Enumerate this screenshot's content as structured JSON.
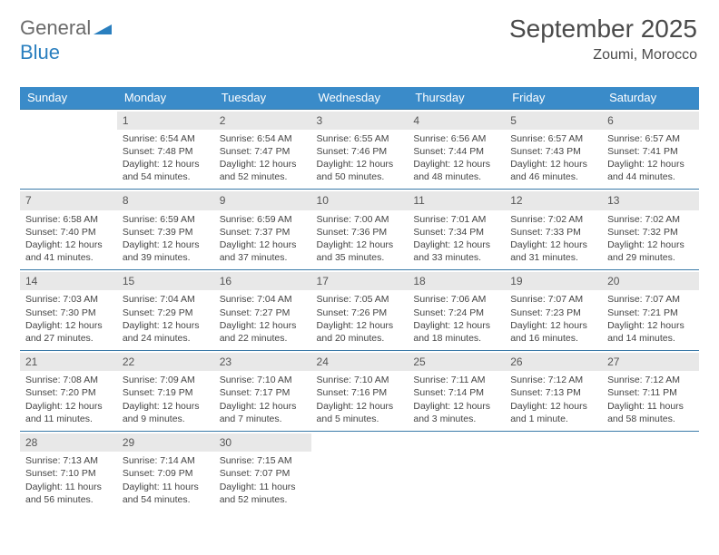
{
  "brand": {
    "part1": "General",
    "part2": "Blue"
  },
  "header": {
    "month_year": "September 2025",
    "location": "Zoumi, Morocco"
  },
  "style": {
    "header_bg": "#3a8bc9",
    "header_fg": "#ffffff",
    "rule_color": "#3a7aa8",
    "daynum_bg": "#e8e8e8",
    "brand_grey": "#6a6a6a",
    "brand_blue": "#2a7fbf"
  },
  "weekdays": [
    "Sunday",
    "Monday",
    "Tuesday",
    "Wednesday",
    "Thursday",
    "Friday",
    "Saturday"
  ],
  "weeks": [
    [
      null,
      {
        "n": "1",
        "sr": "6:54 AM",
        "ss": "7:48 PM",
        "dl": "12 hours and 54 minutes."
      },
      {
        "n": "2",
        "sr": "6:54 AM",
        "ss": "7:47 PM",
        "dl": "12 hours and 52 minutes."
      },
      {
        "n": "3",
        "sr": "6:55 AM",
        "ss": "7:46 PM",
        "dl": "12 hours and 50 minutes."
      },
      {
        "n": "4",
        "sr": "6:56 AM",
        "ss": "7:44 PM",
        "dl": "12 hours and 48 minutes."
      },
      {
        "n": "5",
        "sr": "6:57 AM",
        "ss": "7:43 PM",
        "dl": "12 hours and 46 minutes."
      },
      {
        "n": "6",
        "sr": "6:57 AM",
        "ss": "7:41 PM",
        "dl": "12 hours and 44 minutes."
      }
    ],
    [
      {
        "n": "7",
        "sr": "6:58 AM",
        "ss": "7:40 PM",
        "dl": "12 hours and 41 minutes."
      },
      {
        "n": "8",
        "sr": "6:59 AM",
        "ss": "7:39 PM",
        "dl": "12 hours and 39 minutes."
      },
      {
        "n": "9",
        "sr": "6:59 AM",
        "ss": "7:37 PM",
        "dl": "12 hours and 37 minutes."
      },
      {
        "n": "10",
        "sr": "7:00 AM",
        "ss": "7:36 PM",
        "dl": "12 hours and 35 minutes."
      },
      {
        "n": "11",
        "sr": "7:01 AM",
        "ss": "7:34 PM",
        "dl": "12 hours and 33 minutes."
      },
      {
        "n": "12",
        "sr": "7:02 AM",
        "ss": "7:33 PM",
        "dl": "12 hours and 31 minutes."
      },
      {
        "n": "13",
        "sr": "7:02 AM",
        "ss": "7:32 PM",
        "dl": "12 hours and 29 minutes."
      }
    ],
    [
      {
        "n": "14",
        "sr": "7:03 AM",
        "ss": "7:30 PM",
        "dl": "12 hours and 27 minutes."
      },
      {
        "n": "15",
        "sr": "7:04 AM",
        "ss": "7:29 PM",
        "dl": "12 hours and 24 minutes."
      },
      {
        "n": "16",
        "sr": "7:04 AM",
        "ss": "7:27 PM",
        "dl": "12 hours and 22 minutes."
      },
      {
        "n": "17",
        "sr": "7:05 AM",
        "ss": "7:26 PM",
        "dl": "12 hours and 20 minutes."
      },
      {
        "n": "18",
        "sr": "7:06 AM",
        "ss": "7:24 PM",
        "dl": "12 hours and 18 minutes."
      },
      {
        "n": "19",
        "sr": "7:07 AM",
        "ss": "7:23 PM",
        "dl": "12 hours and 16 minutes."
      },
      {
        "n": "20",
        "sr": "7:07 AM",
        "ss": "7:21 PM",
        "dl": "12 hours and 14 minutes."
      }
    ],
    [
      {
        "n": "21",
        "sr": "7:08 AM",
        "ss": "7:20 PM",
        "dl": "12 hours and 11 minutes."
      },
      {
        "n": "22",
        "sr": "7:09 AM",
        "ss": "7:19 PM",
        "dl": "12 hours and 9 minutes."
      },
      {
        "n": "23",
        "sr": "7:10 AM",
        "ss": "7:17 PM",
        "dl": "12 hours and 7 minutes."
      },
      {
        "n": "24",
        "sr": "7:10 AM",
        "ss": "7:16 PM",
        "dl": "12 hours and 5 minutes."
      },
      {
        "n": "25",
        "sr": "7:11 AM",
        "ss": "7:14 PM",
        "dl": "12 hours and 3 minutes."
      },
      {
        "n": "26",
        "sr": "7:12 AM",
        "ss": "7:13 PM",
        "dl": "12 hours and 1 minute."
      },
      {
        "n": "27",
        "sr": "7:12 AM",
        "ss": "7:11 PM",
        "dl": "11 hours and 58 minutes."
      }
    ],
    [
      {
        "n": "28",
        "sr": "7:13 AM",
        "ss": "7:10 PM",
        "dl": "11 hours and 56 minutes."
      },
      {
        "n": "29",
        "sr": "7:14 AM",
        "ss": "7:09 PM",
        "dl": "11 hours and 54 minutes."
      },
      {
        "n": "30",
        "sr": "7:15 AM",
        "ss": "7:07 PM",
        "dl": "11 hours and 52 minutes."
      },
      null,
      null,
      null,
      null
    ]
  ],
  "labels": {
    "sunrise": "Sunrise:",
    "sunset": "Sunset:",
    "daylight": "Daylight:"
  }
}
